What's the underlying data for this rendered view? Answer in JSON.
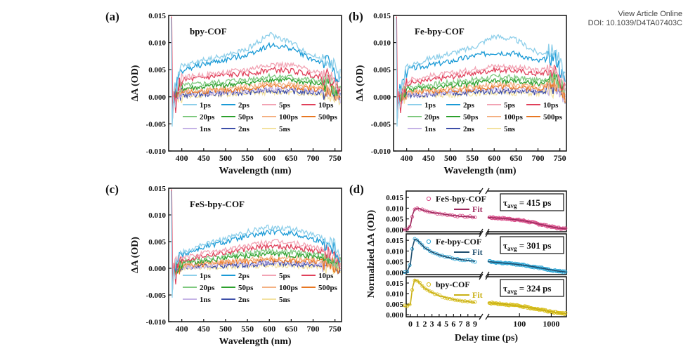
{
  "header": {
    "link_text": "View Article Online",
    "doi": "DOI: 10.1039/D4TA07403C"
  },
  "chart_data": [
    {
      "type": "line",
      "panel": "(a)",
      "inset_label": "bpy-COF",
      "xlabel": "Wavelength (nm)",
      "ylabel": "ΔA (OD)",
      "xlim": [
        370,
        765
      ],
      "ylim": [
        -0.01,
        0.015
      ],
      "xticks": [
        400,
        450,
        500,
        550,
        600,
        650,
        700,
        750
      ],
      "yticks": [
        -0.01,
        -0.005,
        0.0,
        0.005,
        0.01,
        0.015
      ],
      "ytick_labels": [
        "-0.010",
        "-0.005",
        "0.000",
        "0.005",
        "0.010",
        "0.015"
      ],
      "legend_placement": "bottom",
      "x": [
        380,
        400,
        450,
        500,
        550,
        600,
        650,
        700,
        740,
        760
      ],
      "series": [
        {
          "name": "1ps",
          "color": "#8ecfea",
          "values": [
            0.0,
            0.0055,
            0.0068,
            0.0075,
            0.0088,
            0.0115,
            0.01,
            0.0075,
            0.0065,
            0.004
          ]
        },
        {
          "name": "2ps",
          "color": "#1a9ad6",
          "values": [
            0.0,
            0.0048,
            0.006,
            0.0068,
            0.0078,
            0.0095,
            0.009,
            0.0068,
            0.006,
            0.003
          ]
        },
        {
          "name": "5ps",
          "color": "#f2a4b4",
          "values": [
            0.0,
            0.0035,
            0.004,
            0.0045,
            0.005,
            0.006,
            0.0058,
            0.0048,
            0.004,
            0.002
          ]
        },
        {
          "name": "10ps",
          "color": "#e0405a",
          "values": [
            0.0,
            0.003,
            0.0035,
            0.004,
            0.0042,
            0.005,
            0.0048,
            0.004,
            0.0035,
            0.0015
          ]
        },
        {
          "name": "20ps",
          "color": "#7fc97f",
          "values": [
            0.0,
            0.002,
            0.0024,
            0.0028,
            0.0032,
            0.0038,
            0.0036,
            0.003,
            0.0026,
            0.001
          ]
        },
        {
          "name": "50ps",
          "color": "#2ca02c",
          "values": [
            0.0,
            0.0015,
            0.0018,
            0.0022,
            0.0025,
            0.0032,
            0.003,
            0.0025,
            0.0022,
            0.0008
          ]
        },
        {
          "name": "100ps",
          "color": "#f4b183",
          "values": [
            0.0,
            0.001,
            0.0012,
            0.0015,
            0.0018,
            0.0024,
            0.0022,
            0.0018,
            0.0016,
            0.0005
          ]
        },
        {
          "name": "500ps",
          "color": "#e87722",
          "values": [
            0.0,
            0.0008,
            0.001,
            0.0012,
            0.0015,
            0.002,
            0.0018,
            0.0015,
            0.0013,
            0.0003
          ]
        },
        {
          "name": "1ns",
          "color": "#c5b3e6",
          "values": [
            0.0,
            0.0005,
            0.0007,
            0.0009,
            0.0011,
            0.0015,
            0.0013,
            0.0011,
            0.001,
            0.0002
          ]
        },
        {
          "name": "2ns",
          "color": "#3d4ea8",
          "values": [
            0.0,
            0.0003,
            0.0005,
            0.0007,
            0.0008,
            0.0012,
            0.001,
            0.0008,
            0.0007,
            0.0001
          ]
        },
        {
          "name": "5ns",
          "color": "#f3e2a0",
          "values": [
            0.0,
            0.0002,
            0.0003,
            0.0005,
            0.0006,
            0.0009,
            0.0008,
            0.0006,
            0.0005,
            0.0
          ]
        }
      ]
    },
    {
      "type": "line",
      "panel": "(b)",
      "inset_label": "Fe-bpy-COF",
      "xlabel": "Wavelength (nm)",
      "ylabel": "ΔA (OD)",
      "xlim": [
        370,
        765
      ],
      "ylim": [
        -0.01,
        0.015
      ],
      "xticks": [
        400,
        450,
        500,
        550,
        600,
        650,
        700,
        750
      ],
      "yticks": [
        -0.01,
        -0.005,
        0.0,
        0.005,
        0.01,
        0.015
      ],
      "ytick_labels": [
        "-0.010",
        "-0.005",
        "0.000",
        "0.005",
        "0.010",
        "0.015"
      ],
      "legend_placement": "bottom",
      "x": [
        380,
        400,
        450,
        500,
        550,
        600,
        650,
        700,
        740,
        760
      ],
      "series": [
        {
          "name": "1ps",
          "color": "#8ecfea",
          "values": [
            0.0,
            0.0055,
            0.007,
            0.008,
            0.009,
            0.0112,
            0.0105,
            0.008,
            0.0085,
            0.004
          ]
        },
        {
          "name": "2ps",
          "color": "#1a9ad6",
          "values": [
            0.0,
            0.005,
            0.0058,
            0.0065,
            0.0075,
            0.0082,
            0.008,
            0.0065,
            0.0075,
            0.003
          ]
        },
        {
          "name": "5ps",
          "color": "#f2a4b4",
          "values": [
            0.0,
            0.003,
            0.0038,
            0.0043,
            0.005,
            0.0057,
            0.0055,
            0.0048,
            0.0055,
            0.002
          ]
        },
        {
          "name": "10ps",
          "color": "#e0405a",
          "values": [
            0.0,
            0.0025,
            0.003,
            0.0037,
            0.0043,
            0.005,
            0.0048,
            0.0042,
            0.005,
            0.0015
          ]
        },
        {
          "name": "20ps",
          "color": "#7fc97f",
          "values": [
            0.0,
            0.0018,
            0.0022,
            0.0027,
            0.0031,
            0.0037,
            0.0035,
            0.003,
            0.004,
            0.001
          ]
        },
        {
          "name": "50ps",
          "color": "#2ca02c",
          "values": [
            0.0,
            0.0013,
            0.0017,
            0.0021,
            0.0024,
            0.003,
            0.0028,
            0.0024,
            0.0034,
            0.0008
          ]
        },
        {
          "name": "100ps",
          "color": "#f4b183",
          "values": [
            0.0,
            0.0009,
            0.0012,
            0.0015,
            0.0018,
            0.0023,
            0.0022,
            0.0018,
            0.0028,
            0.0005
          ]
        },
        {
          "name": "500ps",
          "color": "#e87722",
          "values": [
            0.0,
            0.0007,
            0.0009,
            0.0012,
            0.0014,
            0.0019,
            0.0018,
            0.0015,
            0.0025,
            0.0003
          ]
        },
        {
          "name": "1ns",
          "color": "#c5b3e6",
          "values": [
            0.0,
            0.0004,
            0.0006,
            0.0008,
            0.001,
            0.0014,
            0.0013,
            0.0011,
            0.002,
            0.0002
          ]
        },
        {
          "name": "2ns",
          "color": "#3d4ea8",
          "values": [
            0.0,
            0.0003,
            0.0004,
            0.0006,
            0.0008,
            0.0011,
            0.001,
            0.0008,
            0.0016,
            0.0001
          ]
        },
        {
          "name": "5ns",
          "color": "#f3e2a0",
          "values": [
            0.0,
            0.0002,
            0.0003,
            0.0004,
            0.0006,
            0.0008,
            0.0007,
            0.0006,
            0.0012,
            0.0
          ]
        }
      ]
    },
    {
      "type": "line",
      "panel": "(c)",
      "inset_label": "FeS-bpy-COF",
      "xlabel": "Wavelength (nm)",
      "ylabel": "ΔA (OD)",
      "xlim": [
        370,
        765
      ],
      "ylim": [
        -0.01,
        0.015
      ],
      "xticks": [
        400,
        450,
        500,
        550,
        600,
        650,
        700,
        750
      ],
      "yticks": [
        -0.01,
        -0.005,
        0.0,
        0.005,
        0.01,
        0.015
      ],
      "ytick_labels": [
        "-0.010",
        "-0.005",
        "0.000",
        "0.005",
        "0.010",
        "0.015"
      ],
      "legend_placement": "bottom",
      "x": [
        380,
        400,
        450,
        500,
        550,
        600,
        650,
        700,
        740,
        760
      ],
      "series": [
        {
          "name": "1ps",
          "color": "#8ecfea",
          "values": [
            0.0,
            0.003,
            0.0045,
            0.0055,
            0.0068,
            0.0077,
            0.0075,
            0.0062,
            0.005,
            0.003
          ]
        },
        {
          "name": "2ps",
          "color": "#1a9ad6",
          "values": [
            0.0,
            0.0025,
            0.004,
            0.005,
            0.006,
            0.0068,
            0.0066,
            0.0055,
            0.0045,
            0.0025
          ]
        },
        {
          "name": "5ps",
          "color": "#f2a4b4",
          "values": [
            0.0,
            0.0018,
            0.0028,
            0.0035,
            0.0042,
            0.005,
            0.0048,
            0.004,
            0.0032,
            0.0015
          ]
        },
        {
          "name": "10ps",
          "color": "#e0405a",
          "values": [
            0.0,
            0.0015,
            0.0024,
            0.003,
            0.0036,
            0.0042,
            0.004,
            0.0034,
            0.0028,
            0.0012
          ]
        },
        {
          "name": "20ps",
          "color": "#7fc97f",
          "values": [
            0.0,
            0.0012,
            0.0018,
            0.0024,
            0.0028,
            0.0033,
            0.0031,
            0.0027,
            0.0022,
            0.001
          ]
        },
        {
          "name": "50ps",
          "color": "#2ca02c",
          "values": [
            0.0,
            0.0009,
            0.0014,
            0.0019,
            0.0023,
            0.0028,
            0.0026,
            0.0022,
            0.0018,
            0.0008
          ]
        },
        {
          "name": "100ps",
          "color": "#f4b183",
          "values": [
            0.0,
            0.0006,
            0.001,
            0.0013,
            0.0016,
            0.002,
            0.0019,
            0.0016,
            0.0013,
            0.0005
          ]
        },
        {
          "name": "500ps",
          "color": "#e87722",
          "values": [
            0.0,
            0.0005,
            0.0008,
            0.0011,
            0.0013,
            0.0016,
            0.0015,
            0.0013,
            0.0011,
            0.0003
          ]
        },
        {
          "name": "1ns",
          "color": "#c5b3e6",
          "values": [
            0.0,
            0.0003,
            0.0005,
            0.0007,
            0.0009,
            0.0011,
            0.001,
            0.0009,
            0.0007,
            0.0002
          ]
        },
        {
          "name": "2ns",
          "color": "#3d4ea8",
          "values": [
            0.0,
            0.0002,
            0.0004,
            0.0005,
            0.0007,
            0.0009,
            0.0008,
            0.0007,
            0.0005,
            0.0001
          ]
        },
        {
          "name": "5ns",
          "color": "#f3e2a0",
          "values": [
            0.0,
            0.0001,
            0.0002,
            0.0003,
            0.0004,
            0.0006,
            0.0005,
            0.0004,
            0.0003,
            0.0
          ]
        }
      ]
    },
    {
      "type": "scatter",
      "panel": "(d)",
      "xlabel": "Delay time (ps)",
      "ylabel": "Normalzied ΔA (OD)",
      "x_axis": "broken: linear 0–9 ps, then log scale",
      "xticks_linear": [
        0,
        1,
        2,
        3,
        4,
        5,
        6,
        7,
        8,
        9
      ],
      "xticks_log": [
        100,
        1000
      ],
      "xtick_labels_log": [
        "100",
        "1000"
      ],
      "log_xlim": [
        10,
        3000
      ],
      "yticks": [
        0.0,
        0.005,
        0.01,
        0.015
      ],
      "ytick_labels": [
        "0.000",
        "0.005",
        "0.010",
        "0.015"
      ],
      "ylim": [
        -0.001,
        0.018
      ],
      "panels": [
        {
          "legend_label": "FeS-bpy-COF",
          "fit_label": "Fit",
          "tau_label": "τ",
          "tau_subscript": "avg",
          "tau_value": "= 415 ps",
          "color": "#d94f8a",
          "fit_color": "#9e2a5e",
          "x": [
            -1,
            -0.5,
            0,
            0.3,
            0.6,
            1,
            2,
            3,
            4,
            5,
            6,
            7,
            8,
            9,
            15,
            30,
            60,
            100,
            200,
            400,
            800,
            1500,
            2500
          ],
          "y": [
            0.0,
            0.0,
            0.002,
            0.007,
            0.0095,
            0.01,
            0.0088,
            0.008,
            0.0075,
            0.007,
            0.0066,
            0.0062,
            0.006,
            0.0058,
            0.0055,
            0.0052,
            0.0048,
            0.0044,
            0.0036,
            0.0026,
            0.0016,
            0.0008,
            0.0004
          ]
        },
        {
          "legend_label": "Fe-bpy-COF",
          "fit_label": "Fit",
          "tau_label": "τ",
          "tau_subscript": "avg",
          "tau_value": "= 301 ps",
          "color": "#2aa6d6",
          "fit_color": "#1f4e6e",
          "x": [
            -1,
            -0.5,
            0,
            0.3,
            0.6,
            1,
            2,
            3,
            4,
            5,
            6,
            7,
            8,
            9,
            15,
            30,
            60,
            100,
            200,
            400,
            800,
            1500,
            2500
          ],
          "y": [
            0.0,
            0.0,
            0.004,
            0.012,
            0.0155,
            0.015,
            0.0115,
            0.0095,
            0.0082,
            0.0072,
            0.0065,
            0.006,
            0.0056,
            0.0052,
            0.0048,
            0.0044,
            0.004,
            0.0036,
            0.003,
            0.0022,
            0.0014,
            0.0007,
            0.0003
          ]
        },
        {
          "legend_label": "bpy-COF",
          "fit_label": "Fit",
          "tau_label": "τ",
          "tau_subscript": "avg",
          "tau_value": "= 324 ps",
          "color": "#d8bf1a",
          "fit_color": "#c9b015",
          "x": [
            -1,
            -0.5,
            0,
            0.3,
            0.6,
            1,
            2,
            3,
            4,
            5,
            6,
            7,
            8,
            9,
            15,
            30,
            60,
            100,
            200,
            400,
            800,
            1500,
            2500
          ],
          "y": [
            0.004,
            0.004,
            0.005,
            0.013,
            0.0165,
            0.016,
            0.0125,
            0.0105,
            0.009,
            0.008,
            0.0072,
            0.0066,
            0.0062,
            0.0058,
            0.0054,
            0.005,
            0.0045,
            0.004,
            0.0033,
            0.0025,
            0.0016,
            0.0009,
            0.0005
          ]
        }
      ]
    }
  ]
}
